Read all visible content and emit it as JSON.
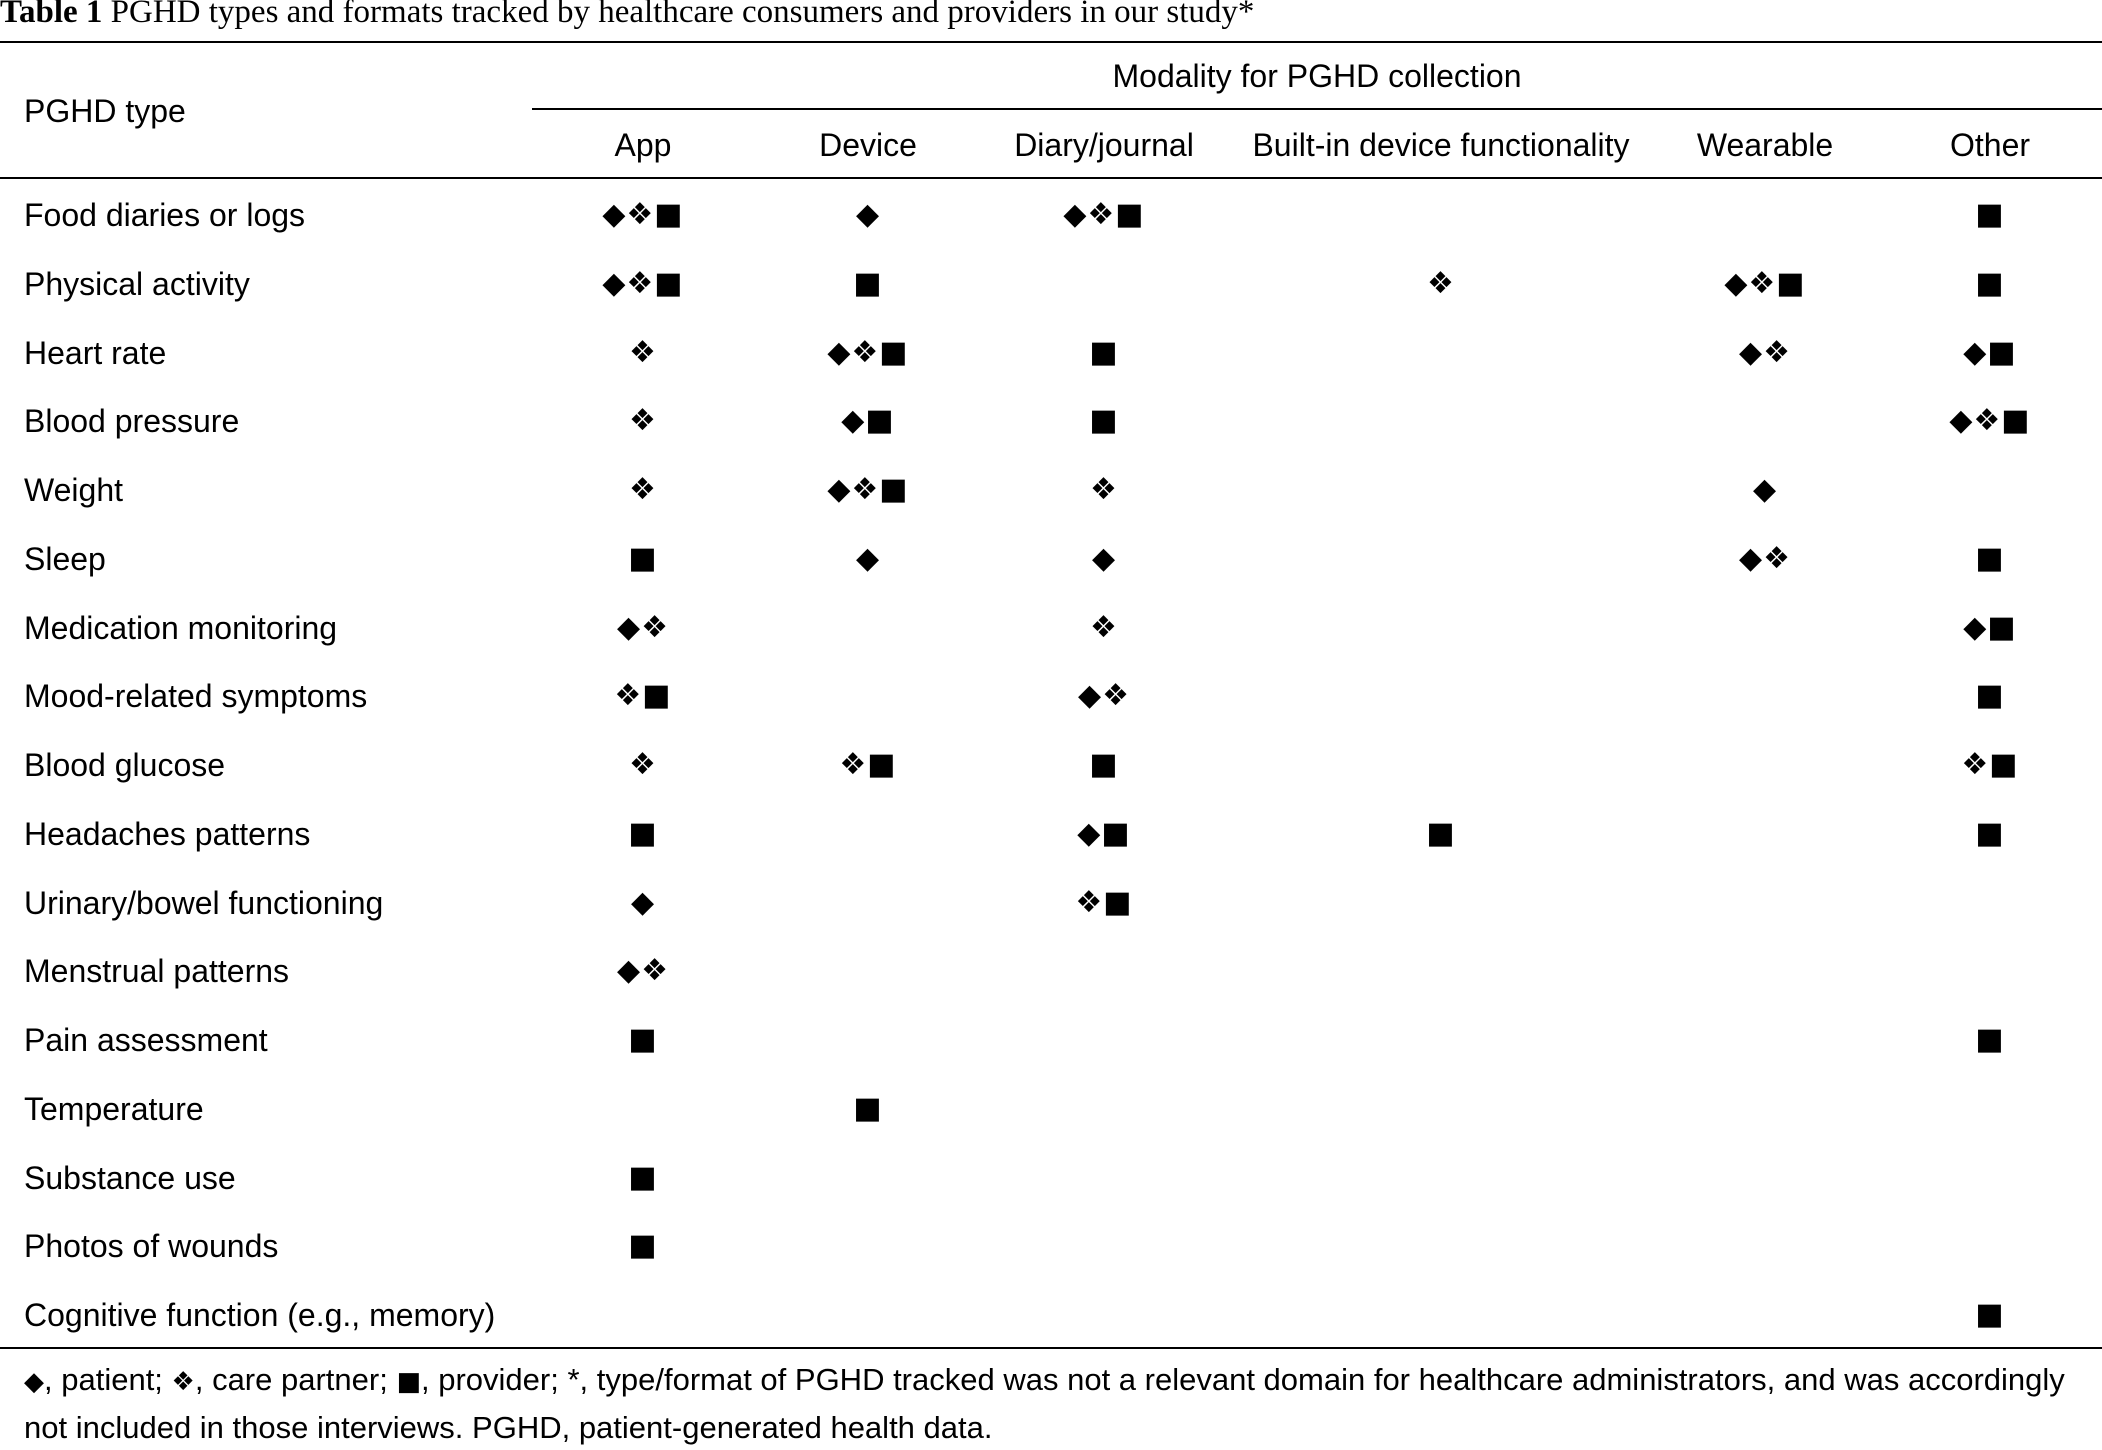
{
  "caption": {
    "label": "Table 1",
    "text": "PGHD types and formats tracked by healthcare consumers and providers in our study*"
  },
  "header": {
    "type_label": "PGHD type",
    "modality_label": "Modality for PGHD collection",
    "columns": [
      "App",
      "Device",
      "Diary/journal",
      "Built-in device functionality",
      "Wearable",
      "Other"
    ]
  },
  "symbols": {
    "patient": "◆",
    "care_partner": "❖",
    "provider": "■"
  },
  "rows": [
    {
      "label": "Food diaries or logs",
      "cells": [
        "◆❖■",
        "◆",
        "◆❖■",
        "",
        "",
        "■"
      ]
    },
    {
      "label": "Physical activity",
      "cells": [
        "◆❖■",
        "■",
        "",
        "❖",
        "◆❖■",
        "■"
      ]
    },
    {
      "label": "Heart rate",
      "cells": [
        "❖",
        "◆❖■",
        "■",
        "",
        "◆❖",
        "◆■"
      ]
    },
    {
      "label": "Blood pressure",
      "cells": [
        "❖",
        "◆■",
        "■",
        "",
        "",
        "◆❖■"
      ]
    },
    {
      "label": "Weight",
      "cells": [
        "❖",
        "◆❖■",
        "❖",
        "",
        "◆",
        ""
      ]
    },
    {
      "label": "Sleep",
      "cells": [
        "■",
        "◆",
        "◆",
        "",
        "◆❖",
        "■"
      ]
    },
    {
      "label": "Medication monitoring",
      "cells": [
        "◆❖",
        "",
        "❖",
        "",
        "",
        "◆■"
      ]
    },
    {
      "label": "Mood-related symptoms",
      "cells": [
        "❖■",
        "",
        "◆❖",
        "",
        "",
        "■"
      ]
    },
    {
      "label": "Blood glucose",
      "cells": [
        "❖",
        "❖■",
        "■",
        "",
        "",
        "❖■"
      ]
    },
    {
      "label": "Headaches patterns",
      "cells": [
        "■",
        "",
        "◆■",
        "■",
        "",
        "■"
      ]
    },
    {
      "label": "Urinary/bowel functioning",
      "cells": [
        "◆",
        "",
        "❖■",
        "",
        "",
        ""
      ]
    },
    {
      "label": "Menstrual patterns",
      "cells": [
        "◆❖",
        "",
        "",
        "",
        "",
        ""
      ]
    },
    {
      "label": "Pain assessment",
      "cells": [
        "■",
        "",
        "",
        "",
        "",
        "■"
      ]
    },
    {
      "label": "Temperature",
      "cells": [
        "",
        "■",
        "",
        "",
        "",
        ""
      ]
    },
    {
      "label": "Substance use",
      "cells": [
        "■",
        "",
        "",
        "",
        "",
        ""
      ]
    },
    {
      "label": "Photos of wounds",
      "cells": [
        "■",
        "",
        "",
        "",
        "",
        ""
      ]
    },
    {
      "label": "Cognitive function (e.g., memory)",
      "cells": [
        "",
        "",
        "",
        "",
        "",
        "■"
      ]
    }
  ],
  "footnote": {
    "sym_patient": "◆",
    "t1": ", patient; ",
    "sym_care": "❖",
    "t2": ", care partner; ",
    "sym_provider": "■",
    "t3": ", provider; *, type/format of PGHD tracked was not a relevant domain for healthcare administrators, and was accordingly not included in those interviews. PGHD, patient-generated health data."
  }
}
